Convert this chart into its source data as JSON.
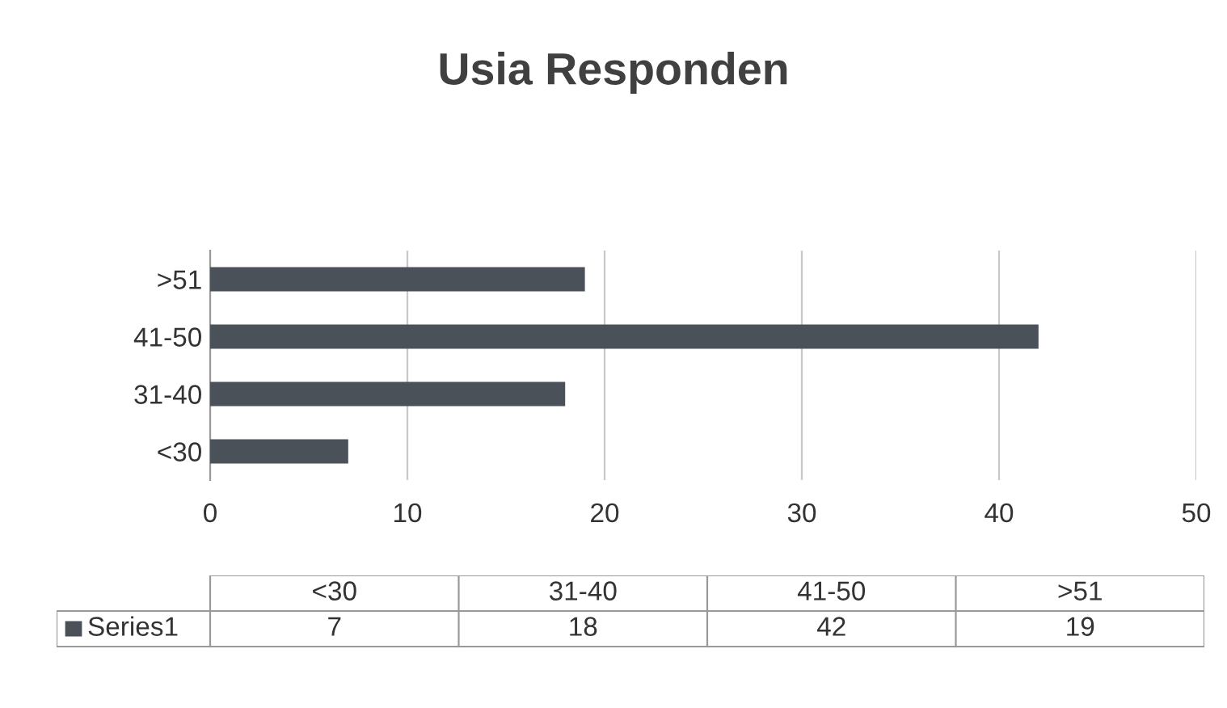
{
  "chart_data": [
    {
      "type": "bar",
      "orientation": "horizontal",
      "title": "Usia Responden",
      "categories": [
        ">51",
        "41-50",
        "31-40",
        "<30"
      ],
      "series": [
        {
          "color": "#4b5159",
          "values": [
            19,
            42,
            18,
            7
          ]
        }
      ],
      "xlim": [
        0,
        50
      ],
      "xticks": [
        0,
        10,
        20,
        30,
        40,
        50
      ],
      "grid": "x"
    },
    {
      "type": "other",
      "categories": [
        "<30",
        "31-40",
        "41-50",
        ">51"
      ],
      "series": [
        {
          "name": "Series1",
          "color": "#4b5159",
          "values": [
            7,
            18,
            42,
            19
          ]
        }
      ],
      "data_labels": true,
      "legend": "left"
    }
  ]
}
